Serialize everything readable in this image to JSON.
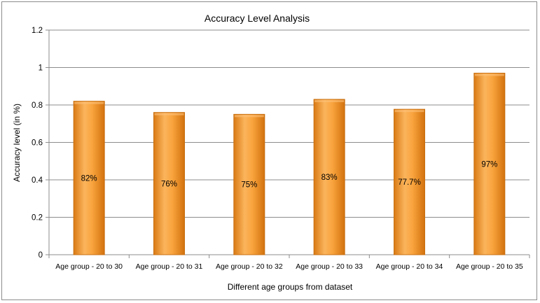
{
  "chart_data": {
    "type": "bar",
    "title": "Accuracy Level Analysis",
    "xlabel": "Different age groups from dataset",
    "ylabel": "Accuracy level (in %)",
    "ylim": [
      0,
      1.2
    ],
    "yticks": [
      0,
      0.2,
      0.4,
      0.6,
      0.8,
      1,
      1.2
    ],
    "ytick_labels": [
      "0",
      "0.2",
      "0.4",
      "0.6",
      "0.8",
      "1",
      "1.2"
    ],
    "grid": true,
    "categories": [
      "Age group - 20 to 30",
      "Age group - 20 to 31",
      "Age group - 20 to 32",
      "Age group - 20 to 33",
      "Age group - 20 to 34",
      "Age group - 20 to 35"
    ],
    "values": [
      0.82,
      0.76,
      0.75,
      0.83,
      0.777,
      0.97
    ],
    "data_labels": [
      "82%",
      "76%",
      "75%",
      "83%",
      "77.7%",
      "97%"
    ],
    "bar_color": "#f7951e",
    "bar_highlight": "#fdc27a",
    "bar_edge": "#c86f10"
  }
}
